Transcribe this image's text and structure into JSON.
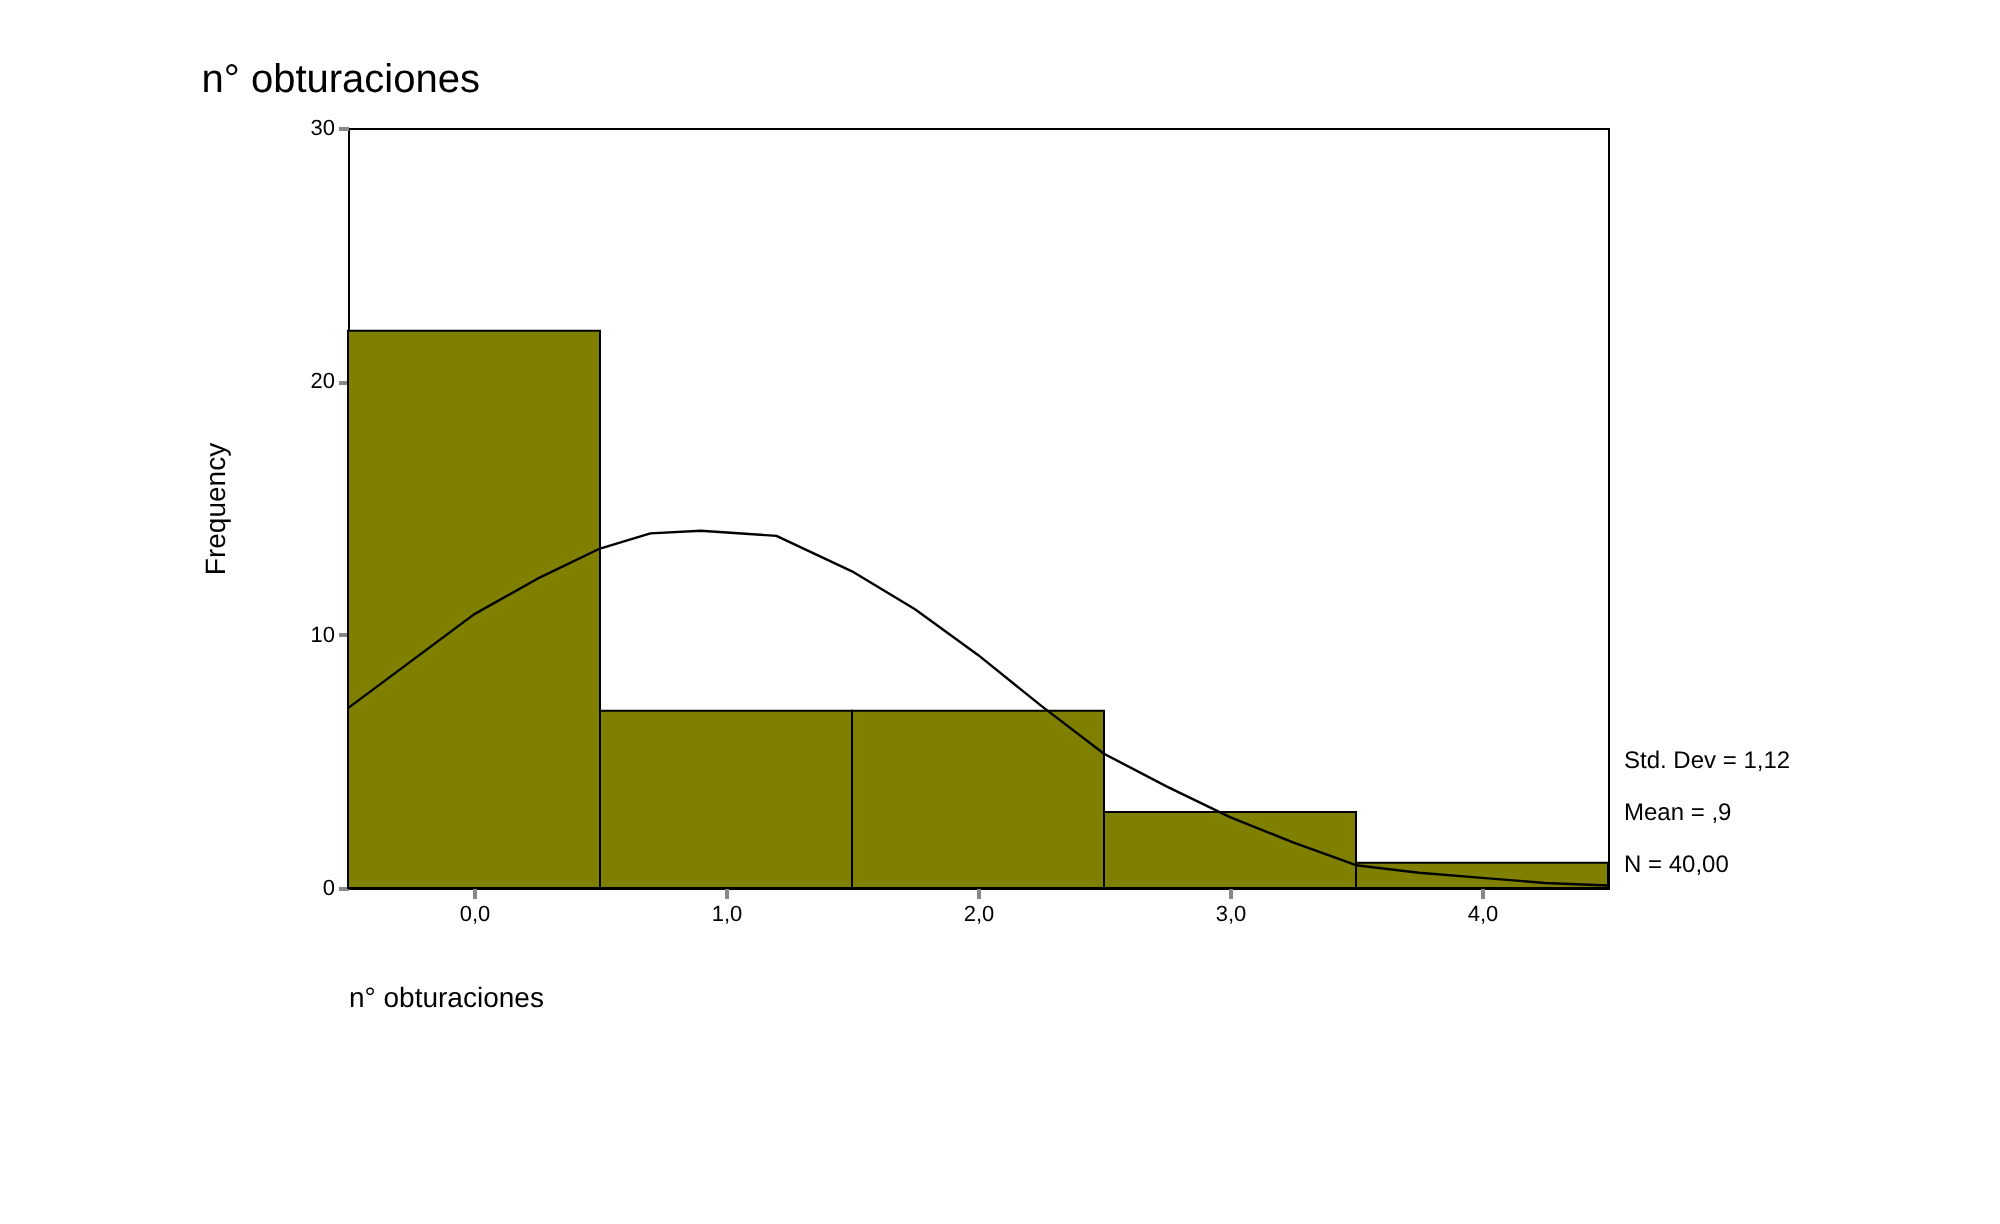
{
  "chart_data": {
    "type": "histogram",
    "title": "n° obturaciones",
    "xlabel": "n° obturaciones",
    "ylabel": "Frequency",
    "bins": [
      -0.5,
      0.5,
      1.5,
      2.5,
      3.5,
      4.5
    ],
    "values": [
      22,
      7,
      7,
      3,
      1
    ],
    "color": "#808000",
    "series": [
      {
        "type": "line",
        "color": "#000000",
        "x": [
          -0.5,
          0,
          0.25,
          0.5,
          0.7,
          0.9,
          1.2,
          1.5,
          1.75,
          2.0,
          2.25,
          2.5,
          2.75,
          3.0,
          3.25,
          3.5,
          3.75,
          4.0,
          4.25,
          4.5
        ],
        "values": [
          7.1,
          10.8,
          12.2,
          13.4,
          14.0,
          14.1,
          13.9,
          12.5,
          11.0,
          9.2,
          7.2,
          5.3,
          4.0,
          2.8,
          1.8,
          0.9,
          0.6,
          0.4,
          0.2,
          0.1
        ]
      }
    ],
    "xlim": [
      -0.5,
      4.5
    ],
    "xticks": [
      {
        "value": 0,
        "label": "0,0"
      },
      {
        "value": 1,
        "label": "1,0"
      },
      {
        "value": 2,
        "label": "2,0"
      },
      {
        "value": 3,
        "label": "3,0"
      },
      {
        "value": 4,
        "label": "4,0"
      }
    ],
    "ylim": [
      0,
      30
    ],
    "yticks": [
      0,
      10,
      20,
      30
    ],
    "grid": false,
    "annotations": [
      "Std. Dev = 1,12",
      "Mean = ,9",
      "N = 40,00"
    ]
  }
}
